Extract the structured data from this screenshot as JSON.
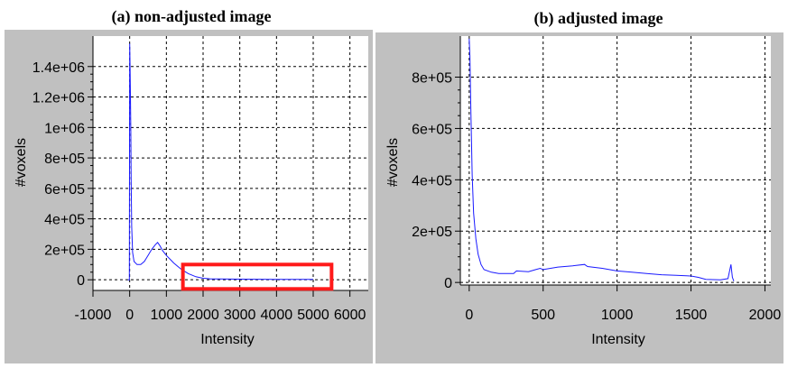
{
  "captions": {
    "left": "(a) non-adjusted image",
    "right": "(b) adjusted image"
  },
  "colors": {
    "panel_background": "#c0c0c0",
    "plot_background": "#ffffff",
    "series_line": "#1a1aff",
    "highlight_box": "#ff1a1a"
  },
  "chart_data": [
    {
      "type": "line",
      "title": "(a) non-adjusted image",
      "xlabel": "Intensity",
      "ylabel": "#voxels",
      "xlim": [
        -1000,
        6500
      ],
      "ylim": [
        -70000,
        1600000
      ],
      "grid": true,
      "x_ticks": [
        -1000,
        0,
        1000,
        2000,
        3000,
        4000,
        5000,
        6000
      ],
      "x_tick_labels": [
        "-1000",
        "0",
        "1000",
        "2000",
        "3000",
        "4000",
        "5000",
        "6000"
      ],
      "y_ticks": [
        0,
        200000,
        400000,
        600000,
        800000,
        1000000,
        1200000,
        1400000
      ],
      "y_tick_labels": [
        "0",
        "2e+05",
        "4e+05",
        "6e+05",
        "8e+05",
        "1e+06",
        "1.2e+06",
        "1.4e+06"
      ],
      "series": [
        {
          "x": [
            -50,
            -10,
            0,
            10,
            20,
            30,
            40,
            55,
            80,
            120,
            200,
            300,
            400,
            500,
            600,
            700,
            760,
            820,
            900,
            1000,
            1100,
            1200,
            1300,
            1400,
            1500,
            1600,
            1700,
            1800,
            1900,
            2000,
            2100,
            2200,
            2400,
            3000,
            4000,
            5000
          ],
          "y": [
            0,
            0,
            1550000,
            1400000,
            1220000,
            1000000,
            650000,
            350000,
            180000,
            120000,
            100000,
            100000,
            120000,
            160000,
            200000,
            230000,
            245000,
            225000,
            190000,
            160000,
            135000,
            110000,
            90000,
            70000,
            55000,
            40000,
            30000,
            20000,
            15000,
            10000,
            8000,
            6000,
            5000,
            4000,
            3000,
            2000
          ]
        }
      ],
      "annotations": [
        {
          "type": "highlight-box",
          "x_range": [
            1450,
            5500
          ],
          "y_range": [
            -60000,
            100000
          ]
        }
      ]
    },
    {
      "type": "line",
      "title": "(b) adjusted image",
      "xlabel": "Intensity",
      "ylabel": "#voxels",
      "xlim": [
        -60,
        2040
      ],
      "ylim": [
        -10000,
        960000
      ],
      "grid": true,
      "x_ticks": [
        0,
        500,
        1000,
        1500,
        2000
      ],
      "x_tick_labels": [
        "0",
        "500",
        "1000",
        "1500",
        "2000"
      ],
      "y_ticks": [
        0,
        200000,
        400000,
        600000,
        800000
      ],
      "y_tick_labels": [
        "0",
        "2e+05",
        "4e+05",
        "6e+05",
        "8e+05"
      ],
      "series": [
        {
          "x": [
            0,
            5,
            10,
            15,
            20,
            30,
            45,
            60,
            80,
            100,
            150,
            200,
            300,
            320,
            400,
            450,
            480,
            500,
            600,
            700,
            780,
            800,
            900,
            1000,
            1100,
            1200,
            1300,
            1400,
            1500,
            1550,
            1600,
            1700,
            1750,
            1770,
            1780,
            1790
          ],
          "y": [
            950000,
            880000,
            700000,
            560000,
            420000,
            270000,
            170000,
            110000,
            70000,
            50000,
            40000,
            35000,
            35000,
            45000,
            42000,
            50000,
            55000,
            50000,
            60000,
            65000,
            70000,
            62000,
            55000,
            45000,
            40000,
            35000,
            30000,
            28000,
            25000,
            20000,
            12000,
            10000,
            15000,
            70000,
            20000,
            5000
          ]
        }
      ]
    }
  ]
}
